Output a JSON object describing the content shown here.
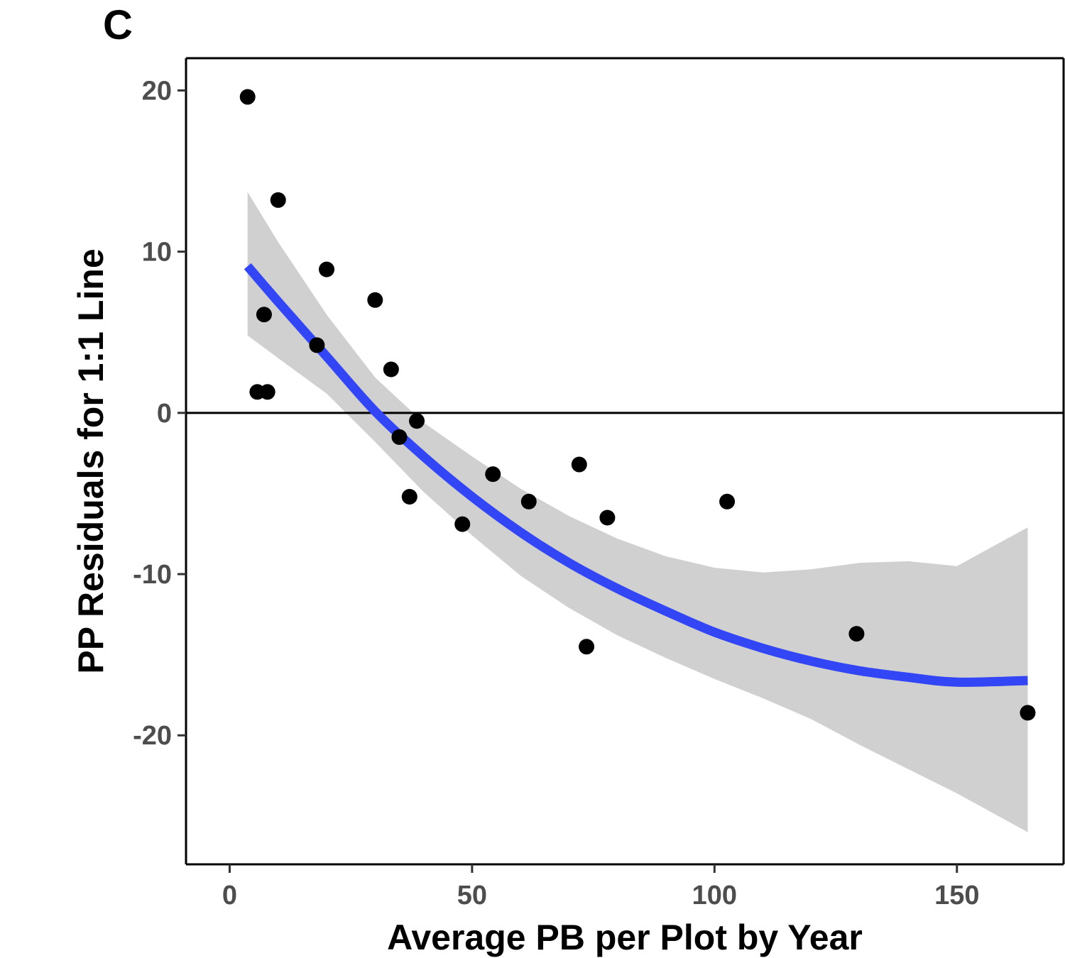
{
  "chart_data": {
    "type": "scatter",
    "panel_label": "C",
    "xlabel": "Average PB per Plot by Year",
    "ylabel": "PP Residuals for 1:1 Line",
    "xlim": [
      -9,
      172
    ],
    "ylim": [
      -28,
      22
    ],
    "xticks": [
      0,
      50,
      100,
      150
    ],
    "yticks": [
      -20,
      -10,
      0,
      10,
      20
    ],
    "xtick_labels": [
      "0",
      "50",
      "100",
      "150"
    ],
    "ytick_labels": [
      "-20",
      "-10",
      "0",
      "10",
      "20"
    ],
    "reference_line_y": 0,
    "grid": false,
    "colors": {
      "points": "#000000",
      "fit_line": "#3246f5",
      "confidence_band": "#d0d0d0",
      "reference_line": "#000000"
    },
    "points": [
      {
        "x": 3.7,
        "y": 19.6
      },
      {
        "x": 10.0,
        "y": 13.2
      },
      {
        "x": 20.0,
        "y": 8.9
      },
      {
        "x": 7.1,
        "y": 6.1
      },
      {
        "x": 5.7,
        "y": 1.3
      },
      {
        "x": 7.8,
        "y": 1.3
      },
      {
        "x": 18.0,
        "y": 4.2
      },
      {
        "x": 30.0,
        "y": 7.0
      },
      {
        "x": 33.3,
        "y": 2.7
      },
      {
        "x": 38.6,
        "y": -0.5
      },
      {
        "x": 35.0,
        "y": -1.5
      },
      {
        "x": 37.1,
        "y": -5.2
      },
      {
        "x": 48.0,
        "y": -6.9
      },
      {
        "x": 54.3,
        "y": -3.8
      },
      {
        "x": 61.7,
        "y": -5.5
      },
      {
        "x": 72.1,
        "y": -3.2
      },
      {
        "x": 77.9,
        "y": -6.5
      },
      {
        "x": 73.6,
        "y": -14.5
      },
      {
        "x": 102.6,
        "y": -5.5
      },
      {
        "x": 129.3,
        "y": -13.7
      },
      {
        "x": 164.6,
        "y": -18.6
      }
    ],
    "fit": {
      "method": "quadratic",
      "x": [
        3.7,
        10,
        20,
        30,
        40,
        50,
        60,
        70,
        80,
        90,
        100,
        110,
        120,
        130,
        140,
        150,
        164.6
      ],
      "y": [
        9.1,
        6.9,
        3.5,
        0.1,
        -2.7,
        -5.2,
        -7.4,
        -9.3,
        -10.9,
        -12.3,
        -13.6,
        -14.6,
        -15.4,
        -16.0,
        -16.4,
        -16.7,
        -16.6
      ],
      "ci_lower": [
        4.8,
        3.4,
        1.2,
        -1.8,
        -4.9,
        -7.6,
        -10.1,
        -12.1,
        -13.8,
        -15.2,
        -16.5,
        -17.7,
        -19.0,
        -20.6,
        -22.1,
        -23.6,
        -26.0
      ],
      "ci_upper": [
        13.7,
        10.6,
        6.1,
        2.2,
        -0.6,
        -2.7,
        -4.7,
        -6.4,
        -7.8,
        -8.9,
        -9.6,
        -9.9,
        -9.7,
        -9.3,
        -9.2,
        -9.5,
        -7.1
      ]
    }
  }
}
